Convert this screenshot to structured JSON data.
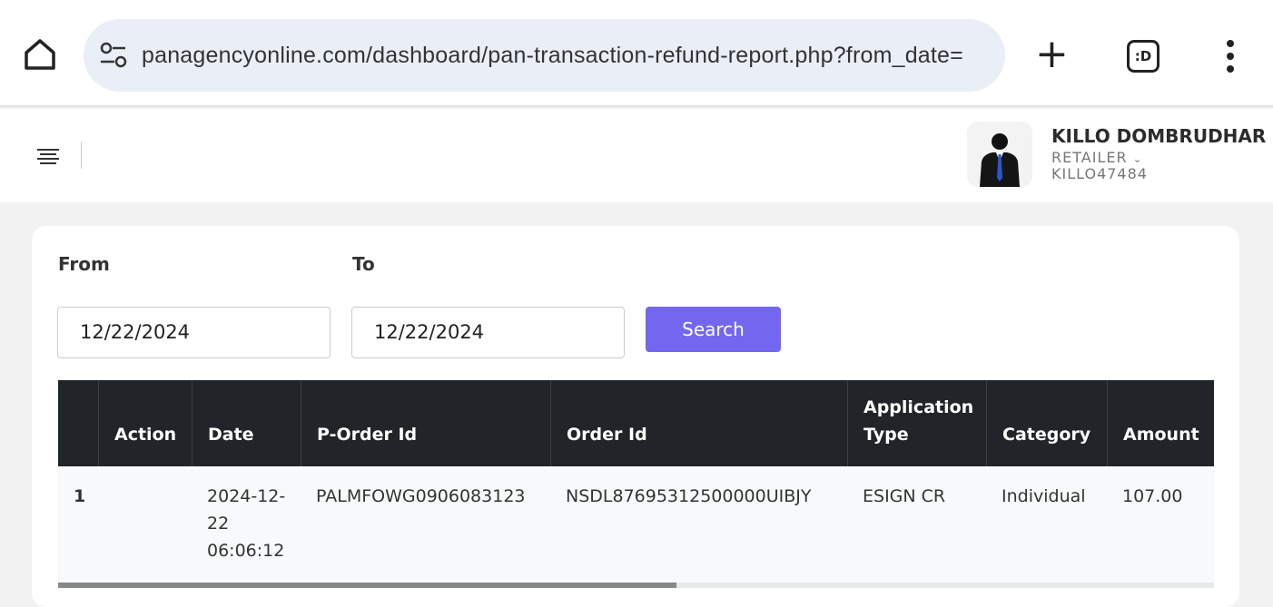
{
  "browser": {
    "url": "panagencyonline.com/dashboard/pan-transaction-refund-report.php?from_date=",
    "tabs_label": ":D"
  },
  "user": {
    "name": "KILLO DOMBRUDHAR",
    "role": "RETAILER",
    "id": "KILLO47484"
  },
  "filters": {
    "from_label": "From",
    "to_label": "To",
    "from_value": "12/22/2024",
    "to_value": "12/22/2024",
    "search_label": "Search"
  },
  "colors": {
    "accent": "#7367f0",
    "table_header": "#212529"
  },
  "table": {
    "headers": [
      "",
      "Action",
      "Date",
      "P-Order Id",
      "Order Id",
      "Application Type",
      "Category",
      "Amount"
    ],
    "rows": [
      {
        "index": "1",
        "action": "",
        "date": "2024-12-22 06:06:12",
        "porder": "PALMFOWG0906083123",
        "order": "NSDL87695312500000UIBJY",
        "apptype": "ESIGN CR",
        "category": "Individual",
        "amount": "107.00"
      }
    ]
  }
}
